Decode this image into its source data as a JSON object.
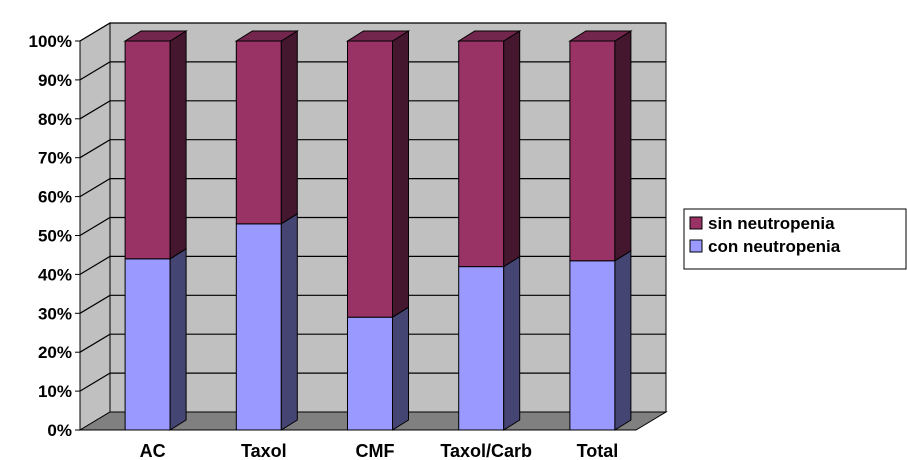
{
  "chart_data": {
    "type": "bar",
    "stacked": true,
    "percent_stacked": true,
    "three_d": true,
    "categories": [
      "AC",
      "Taxol",
      "CMF",
      "Taxol/Carb",
      "Total"
    ],
    "series": [
      {
        "name": "con neutropenia",
        "values": [
          44,
          53,
          29,
          42,
          43.5
        ],
        "color": "#9999ff"
      },
      {
        "name": "sin neutropenia",
        "values": [
          56,
          47,
          71,
          58,
          56.5
        ],
        "color": "#993366"
      }
    ],
    "y_ticks": [
      "0%",
      "10%",
      "20%",
      "30%",
      "40%",
      "50%",
      "60%",
      "70%",
      "80%",
      "90%",
      "100%"
    ],
    "ylim": [
      0,
      100
    ],
    "grid": true,
    "legend_position": "right",
    "legend_order": [
      "sin neutropenia",
      "con neutropenia"
    ],
    "colors": {
      "back_wall": "#c0c0c0",
      "floor": "#808080",
      "gridline": "#000000"
    }
  }
}
